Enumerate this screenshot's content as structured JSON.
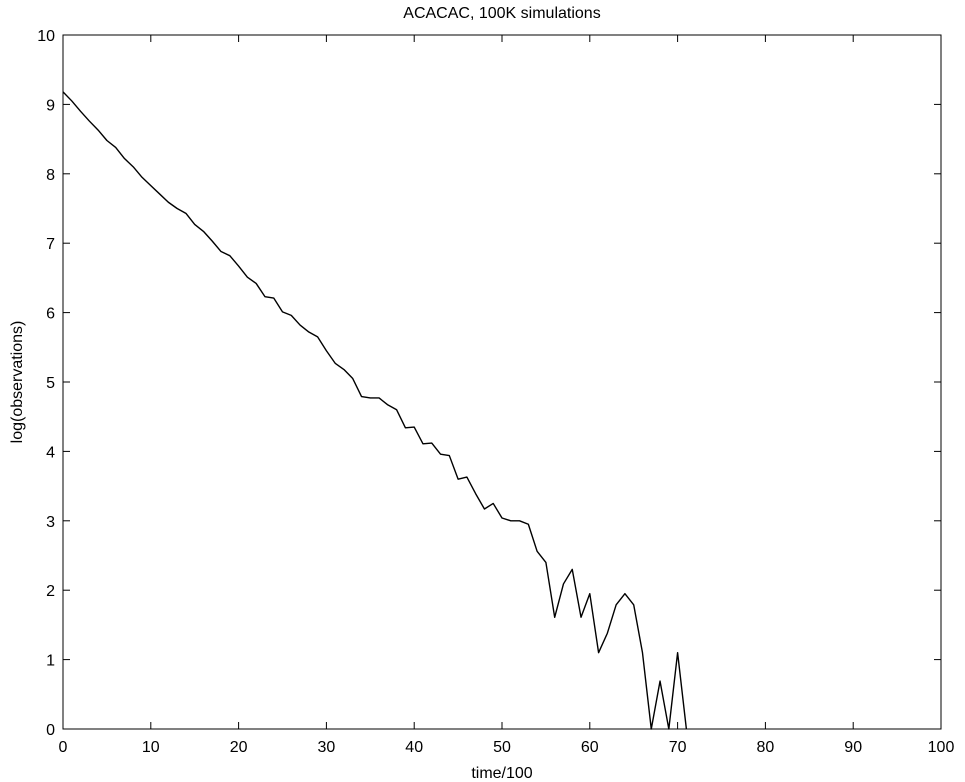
{
  "chart_data": {
    "type": "line",
    "title": "ACACAC, 100K simulations",
    "xlabel": "time/100",
    "ylabel": "log(observations)",
    "xlim": [
      0,
      100
    ],
    "ylim": [
      0,
      10
    ],
    "xticks": [
      0,
      10,
      20,
      30,
      40,
      50,
      60,
      70,
      80,
      90,
      100
    ],
    "yticks": [
      0,
      1,
      2,
      3,
      4,
      5,
      6,
      7,
      8,
      9,
      10
    ],
    "grid": false,
    "line_color": "#000000",
    "series": [
      {
        "x": [
          0,
          1,
          2,
          3,
          4,
          5,
          6,
          7,
          8,
          9,
          10,
          11,
          12,
          13,
          14,
          15,
          16,
          17,
          18,
          19,
          20,
          21,
          22,
          23,
          24,
          25,
          26,
          27,
          28,
          29,
          30,
          31,
          32,
          33,
          34,
          35,
          36,
          37,
          38,
          39,
          40,
          41,
          42,
          43,
          44,
          45,
          46,
          47,
          48,
          49,
          50,
          51,
          52,
          53,
          54,
          55,
          56,
          57,
          58,
          59,
          60,
          61,
          62,
          63,
          64,
          65,
          66,
          67,
          68,
          69,
          70,
          71
        ],
        "y": [
          9.18,
          9.05,
          8.9,
          8.76,
          8.63,
          8.48,
          8.38,
          8.22,
          8.1,
          7.95,
          7.83,
          7.71,
          7.59,
          7.5,
          7.43,
          7.27,
          7.17,
          7.03,
          6.88,
          6.82,
          6.67,
          6.51,
          6.42,
          6.23,
          6.21,
          6.01,
          5.96,
          5.82,
          5.72,
          5.65,
          5.45,
          5.27,
          5.18,
          5.05,
          4.79,
          4.77,
          4.77,
          4.67,
          4.6,
          4.34,
          4.35,
          4.11,
          4.12,
          3.96,
          3.94,
          3.6,
          3.63,
          3.39,
          3.17,
          3.25,
          3.04,
          3.0,
          3.0,
          2.95,
          2.56,
          2.4,
          1.61,
          2.09,
          2.3,
          1.61,
          1.95,
          1.1,
          1.38,
          1.79,
          1.95,
          1.79,
          1.1,
          0.0,
          0.69,
          0.0,
          1.1,
          0.0
        ]
      }
    ]
  }
}
